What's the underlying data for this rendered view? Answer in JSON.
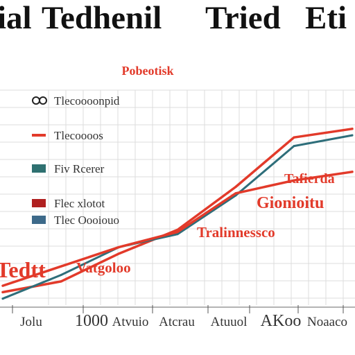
{
  "title_parts": [
    "ial",
    "Tedhenil",
    "Tried",
    "Eti"
  ],
  "top_label": "Pobeotisk",
  "legend": [
    {
      "label": "Tlecoooonpid",
      "color": "#5a5a5a",
      "swatch": "ring"
    },
    {
      "label": "Tlecoooos",
      "color": "#e23a2a",
      "swatch": "dash"
    },
    {
      "label": "Fiv Rcerer",
      "color": "#2e7070",
      "swatch": "box"
    },
    {
      "label": "Flec xlotot",
      "color": "#b02020",
      "swatch": "box"
    },
    {
      "label": "Tlec Oooiouo",
      "color": "#3d6a8a",
      "swatch": "box"
    }
  ],
  "annotations": [
    "Tafierda",
    "Gionioitu",
    "Tralinnessco",
    "Vatgoloo",
    "Tedtt"
  ],
  "x_tick_labels": [
    "Jolu",
    "1000",
    "Atvuio",
    "Atcrau",
    "Atuuol",
    "AKoo",
    "Noaaco"
  ],
  "chart_data": {
    "type": "line",
    "title": "",
    "xlabel": "",
    "ylabel": "",
    "categories": [
      "Jolu",
      "1000",
      "Atvuio",
      "Atcrau",
      "Atuuol",
      "AKoo",
      "Noaaco"
    ],
    "series": [
      {
        "name": "",
        "color": "#e23a2a",
        "values": [
          6,
          11,
          24,
          35,
          55,
          78,
          82
        ]
      },
      {
        "name": "",
        "color": "#2e6e7a",
        "values": [
          3,
          14,
          27,
          33,
          51,
          74,
          79
        ]
      },
      {
        "name": "",
        "color": "#e23a2a",
        "values": [
          9,
          18,
          27,
          34,
          52,
          58,
          62
        ]
      }
    ],
    "ylim": [
      0,
      100
    ],
    "grid": true,
    "legend_placement": "left"
  },
  "colors": {
    "red": "#e23a2a",
    "teal": "#2e6e7a",
    "grid": "#dcdcdc"
  }
}
